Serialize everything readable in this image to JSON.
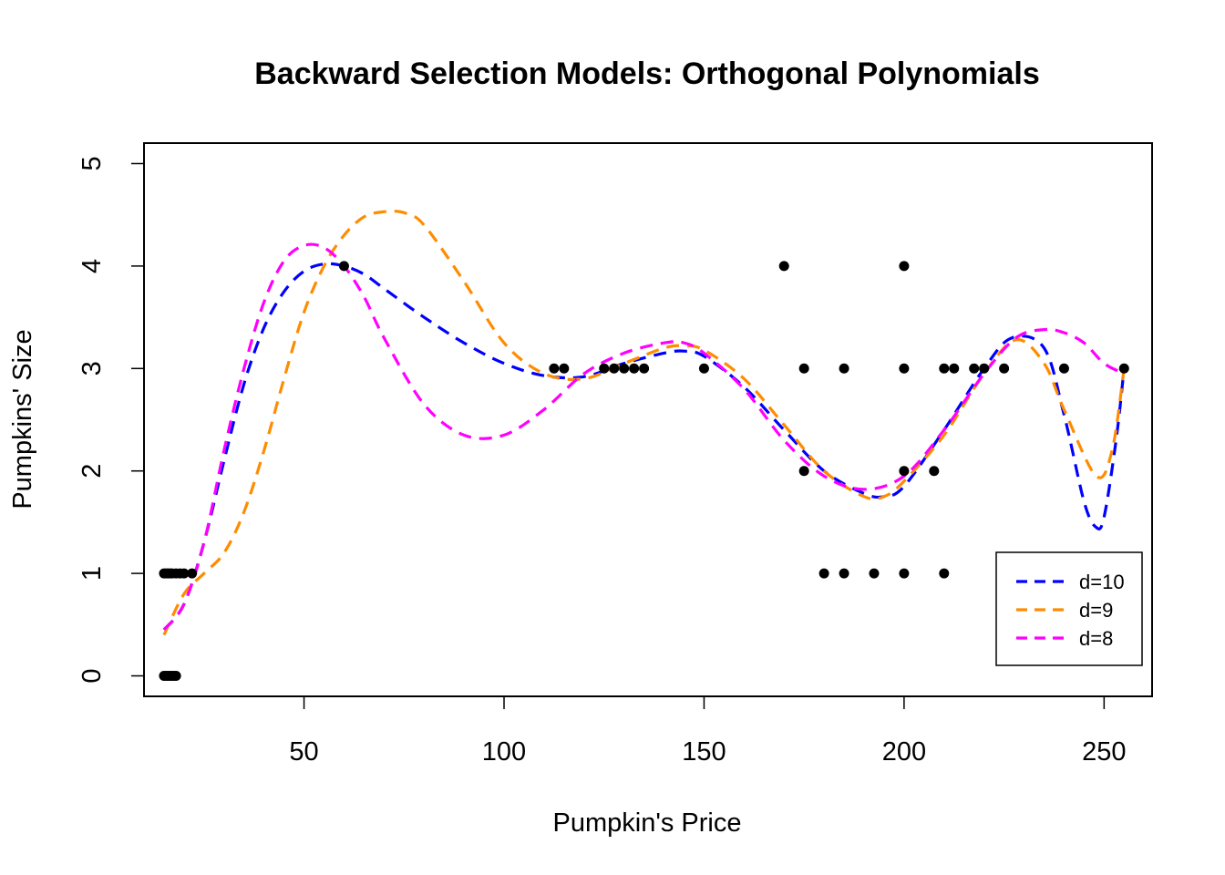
{
  "chart_data": {
    "type": "scatter",
    "title": "Backward Selection Models: Orthogonal Polynomials",
    "xlabel": "Pumpkin's Price",
    "ylabel": "Pumpkins' Size",
    "xlim": [
      10,
      262
    ],
    "ylim": [
      -0.2,
      5.2
    ],
    "xticks": [
      50,
      100,
      150,
      200,
      250
    ],
    "yticks": [
      0,
      1,
      2,
      3,
      4,
      5
    ],
    "grid": false,
    "legend_position": "bottom-right",
    "points": [
      [
        15,
        0
      ],
      [
        15.5,
        0
      ],
      [
        16,
        0
      ],
      [
        16.5,
        0
      ],
      [
        17,
        0
      ],
      [
        17.5,
        0
      ],
      [
        18,
        0
      ],
      [
        15,
        1
      ],
      [
        15.5,
        1
      ],
      [
        16,
        1
      ],
      [
        16.5,
        1
      ],
      [
        17,
        1
      ],
      [
        18,
        1
      ],
      [
        19,
        1
      ],
      [
        20,
        1
      ],
      [
        22,
        1
      ],
      [
        60,
        4
      ],
      [
        112.5,
        3
      ],
      [
        115,
        3
      ],
      [
        125,
        3
      ],
      [
        127.5,
        3
      ],
      [
        130,
        3
      ],
      [
        132.5,
        3
      ],
      [
        135,
        3
      ],
      [
        150,
        3
      ],
      [
        170,
        4
      ],
      [
        175,
        3
      ],
      [
        175,
        2
      ],
      [
        180,
        1
      ],
      [
        185,
        1
      ],
      [
        185,
        3
      ],
      [
        192.5,
        1
      ],
      [
        200,
        1
      ],
      [
        200,
        2
      ],
      [
        200,
        3
      ],
      [
        200,
        4
      ],
      [
        207.5,
        2
      ],
      [
        210,
        1
      ],
      [
        210,
        3
      ],
      [
        212.5,
        3
      ],
      [
        217.5,
        3
      ],
      [
        220,
        3
      ],
      [
        225,
        3
      ],
      [
        240,
        3
      ],
      [
        255,
        3
      ]
    ],
    "series": [
      {
        "name": "d=10",
        "color": "#0000ff",
        "x": [
          15,
          20,
          25,
          30,
          35,
          40,
          45,
          50,
          55,
          60,
          65,
          70,
          80,
          90,
          100,
          110,
          120,
          130,
          140,
          145,
          150,
          160,
          170,
          180,
          190,
          195,
          200,
          210,
          220,
          227,
          235,
          240,
          245,
          248,
          250,
          253,
          255
        ],
        "y": [
          0.45,
          0.7,
          1.3,
          2.1,
          2.85,
          3.4,
          3.75,
          3.95,
          4.02,
          4.0,
          3.92,
          3.78,
          3.5,
          3.25,
          3.05,
          2.93,
          2.92,
          3.05,
          3.15,
          3.17,
          3.12,
          2.82,
          2.4,
          2.0,
          1.78,
          1.75,
          1.85,
          2.4,
          3.0,
          3.3,
          3.2,
          2.55,
          1.7,
          1.45,
          1.55,
          2.3,
          3.0
        ]
      },
      {
        "name": "d=9",
        "color": "#ff8c00",
        "x": [
          15,
          20,
          25,
          30,
          35,
          40,
          45,
          50,
          55,
          60,
          65,
          70,
          75,
          80,
          90,
          100,
          110,
          120,
          130,
          140,
          145,
          150,
          160,
          170,
          180,
          190,
          195,
          200,
          210,
          220,
          228,
          235,
          240,
          248,
          252,
          255
        ],
        "y": [
          0.4,
          0.8,
          1.0,
          1.2,
          1.6,
          2.2,
          2.9,
          3.55,
          4.0,
          4.3,
          4.48,
          4.53,
          4.52,
          4.4,
          3.85,
          3.25,
          2.95,
          2.9,
          3.05,
          3.2,
          3.22,
          3.18,
          2.9,
          2.45,
          2.0,
          1.75,
          1.75,
          1.9,
          2.35,
          2.95,
          3.28,
          3.05,
          2.6,
          1.95,
          2.2,
          3.0
        ]
      },
      {
        "name": "d=8",
        "color": "#ff00ff",
        "x": [
          15,
          20,
          25,
          30,
          35,
          40,
          45,
          50,
          55,
          60,
          65,
          70,
          80,
          90,
          100,
          110,
          120,
          130,
          140,
          145,
          150,
          160,
          170,
          180,
          190,
          200,
          210,
          220,
          228,
          235,
          240,
          245,
          250,
          255
        ],
        "y": [
          0.45,
          0.7,
          1.3,
          2.2,
          3.0,
          3.65,
          4.05,
          4.2,
          4.18,
          4.0,
          3.7,
          3.3,
          2.65,
          2.35,
          2.35,
          2.6,
          2.95,
          3.15,
          3.25,
          3.25,
          3.15,
          2.8,
          2.3,
          1.95,
          1.82,
          1.95,
          2.4,
          2.95,
          3.3,
          3.38,
          3.35,
          3.25,
          3.05,
          2.95
        ]
      }
    ]
  }
}
